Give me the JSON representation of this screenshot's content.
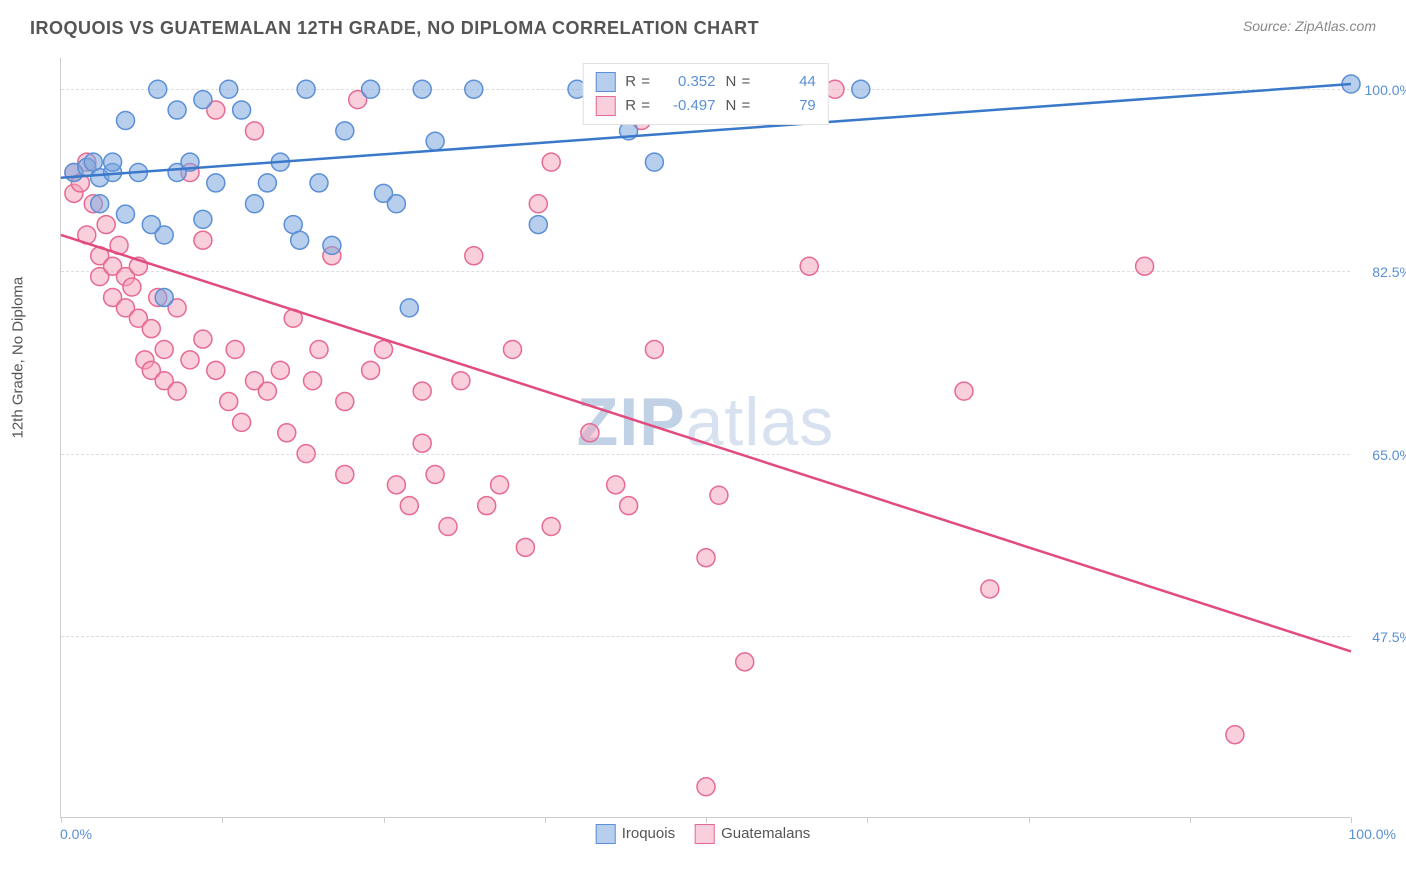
{
  "header": {
    "title": "IROQUOIS VS GUATEMALAN 12TH GRADE, NO DIPLOMA CORRELATION CHART",
    "source_label": "Source:",
    "source_name": "ZipAtlas.com"
  },
  "chart": {
    "type": "scatter",
    "y_axis_title": "12th Grade, No Diploma",
    "x_min_label": "0.0%",
    "x_max_label": "100.0%",
    "watermark_bold": "ZIP",
    "watermark_light": "atlas",
    "background_color": "#ffffff",
    "grid_color": "#dddddd",
    "axis_color": "#cccccc",
    "tick_label_color": "#5b8fd6",
    "x_range": [
      0,
      100
    ],
    "y_range": [
      30,
      103
    ],
    "y_gridlines": [
      47.5,
      65.0,
      82.5,
      100.0
    ],
    "y_gridline_labels": [
      "47.5%",
      "65.0%",
      "82.5%",
      "100.0%"
    ],
    "x_ticks": [
      0,
      12.5,
      25,
      37.5,
      50,
      62.5,
      75,
      87.5,
      100
    ],
    "series": {
      "iroquois": {
        "label": "Iroquois",
        "fill": "rgba(123,168,222,0.55)",
        "stroke": "#5b8fd6",
        "line_color": "#3a78c9",
        "line_width": 2.5,
        "marker_radius": 9,
        "r_value": "0.352",
        "n_value": "44",
        "trend": {
          "x1": 0,
          "y1": 91.5,
          "x2": 100,
          "y2": 100.5
        },
        "points": [
          [
            1,
            92
          ],
          [
            2,
            92.5
          ],
          [
            2.5,
            93
          ],
          [
            3,
            91.5
          ],
          [
            3,
            89
          ],
          [
            4,
            92
          ],
          [
            4,
            93
          ],
          [
            5,
            88
          ],
          [
            5,
            97
          ],
          [
            6,
            92
          ],
          [
            7,
            87
          ],
          [
            7.5,
            100
          ],
          [
            8,
            86
          ],
          [
            8,
            80
          ],
          [
            9,
            92
          ],
          [
            9,
            98
          ],
          [
            10,
            93
          ],
          [
            11,
            99
          ],
          [
            11,
            87.5
          ],
          [
            12,
            91
          ],
          [
            13,
            100
          ],
          [
            14,
            98
          ],
          [
            15,
            89
          ],
          [
            16,
            91
          ],
          [
            17,
            93
          ],
          [
            18,
            87
          ],
          [
            18.5,
            85.5
          ],
          [
            19,
            100
          ],
          [
            20,
            91
          ],
          [
            21,
            85
          ],
          [
            22,
            96
          ],
          [
            24,
            100
          ],
          [
            25,
            90
          ],
          [
            26,
            89
          ],
          [
            27,
            79
          ],
          [
            28,
            100
          ],
          [
            29,
            95
          ],
          [
            32,
            100
          ],
          [
            37,
            87
          ],
          [
            40,
            100
          ],
          [
            44,
            96
          ],
          [
            46,
            93
          ],
          [
            62,
            100
          ],
          [
            100,
            100.5
          ]
        ]
      },
      "guatemalans": {
        "label": "Guatemalans",
        "fill": "rgba(244,160,185,0.5)",
        "stroke": "#e66a93",
        "line_color": "#e14b7d",
        "line_width": 2.5,
        "marker_radius": 9,
        "r_value": "-0.497",
        "n_value": "79",
        "trend": {
          "x1": 0,
          "y1": 86,
          "x2": 100,
          "y2": 46
        },
        "points": [
          [
            1,
            92
          ],
          [
            1,
            90
          ],
          [
            1.5,
            91
          ],
          [
            2,
            93
          ],
          [
            2,
            86
          ],
          [
            2.5,
            89
          ],
          [
            3,
            84
          ],
          [
            3,
            82
          ],
          [
            3.5,
            87
          ],
          [
            4,
            83
          ],
          [
            4,
            80
          ],
          [
            4.5,
            85
          ],
          [
            5,
            82
          ],
          [
            5,
            79
          ],
          [
            5.5,
            81
          ],
          [
            6,
            78
          ],
          [
            6,
            83
          ],
          [
            6.5,
            74
          ],
          [
            7,
            77
          ],
          [
            7,
            73
          ],
          [
            7.5,
            80
          ],
          [
            8,
            72
          ],
          [
            8,
            75
          ],
          [
            9,
            71
          ],
          [
            9,
            79
          ],
          [
            10,
            74
          ],
          [
            10,
            92
          ],
          [
            11,
            76
          ],
          [
            11,
            85.5
          ],
          [
            12,
            73
          ],
          [
            12,
            98
          ],
          [
            13,
            70
          ],
          [
            13.5,
            75
          ],
          [
            14,
            68
          ],
          [
            15,
            72
          ],
          [
            15,
            96
          ],
          [
            16,
            71
          ],
          [
            17,
            73
          ],
          [
            17.5,
            67
          ],
          [
            18,
            78
          ],
          [
            19,
            65
          ],
          [
            19.5,
            72
          ],
          [
            20,
            75
          ],
          [
            21,
            84
          ],
          [
            22,
            70
          ],
          [
            22,
            63
          ],
          [
            23,
            99
          ],
          [
            24,
            73
          ],
          [
            25,
            75
          ],
          [
            26,
            62
          ],
          [
            27,
            60
          ],
          [
            28,
            66
          ],
          [
            28,
            71
          ],
          [
            29,
            63
          ],
          [
            30,
            58
          ],
          [
            31,
            72
          ],
          [
            32,
            84
          ],
          [
            33,
            60
          ],
          [
            34,
            62
          ],
          [
            35,
            75
          ],
          [
            36,
            56
          ],
          [
            37,
            89
          ],
          [
            38,
            58
          ],
          [
            38,
            93
          ],
          [
            41,
            67
          ],
          [
            43,
            62
          ],
          [
            44,
            60
          ],
          [
            45,
            97
          ],
          [
            46,
            75
          ],
          [
            50,
            55
          ],
          [
            50,
            33
          ],
          [
            51,
            61
          ],
          [
            53,
            45
          ],
          [
            58,
            83
          ],
          [
            60,
            100
          ],
          [
            70,
            71
          ],
          [
            72,
            52
          ],
          [
            84,
            83
          ],
          [
            91,
            38
          ]
        ]
      }
    },
    "legend_stats": {
      "r_label": "R =",
      "n_label": "N ="
    }
  }
}
